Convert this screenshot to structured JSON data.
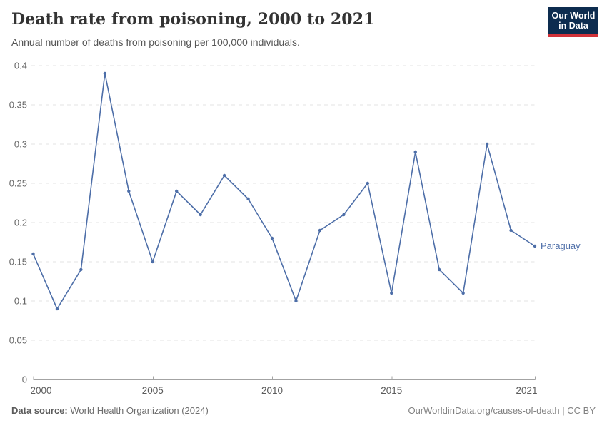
{
  "header": {
    "title": "Death rate from poisoning, 2000 to 2021",
    "subtitle": "Annual number of deaths from poisoning per 100,000 individuals.",
    "logo": {
      "line1": "Our World",
      "line2": "in Data",
      "bg_color": "#0d2c4f",
      "accent_color": "#d13239"
    }
  },
  "chart_data": {
    "type": "line",
    "title": "Death rate from poisoning, 2000 to 2021",
    "subtitle": "Annual number of deaths from poisoning per 100,000 individuals.",
    "xlabel": "",
    "ylabel": "",
    "x": [
      2000,
      2001,
      2002,
      2003,
      2004,
      2005,
      2006,
      2007,
      2008,
      2009,
      2010,
      2011,
      2012,
      2013,
      2014,
      2015,
      2016,
      2017,
      2018,
      2019,
      2020,
      2021
    ],
    "series": [
      {
        "name": "Paraguay",
        "color": "#4d6ea8",
        "values": [
          0.16,
          0.09,
          0.14,
          0.39,
          0.24,
          0.15,
          0.24,
          0.21,
          0.26,
          0.23,
          0.18,
          0.1,
          0.19,
          0.21,
          0.25,
          0.11,
          0.29,
          0.14,
          0.11,
          0.3,
          0.19,
          0.17
        ]
      }
    ],
    "ylim": [
      0,
      0.4
    ],
    "yticks": [
      0,
      0.05,
      0.1,
      0.15,
      0.2,
      0.25,
      0.3,
      0.35,
      0.4
    ],
    "xticks": [
      2000,
      2005,
      2010,
      2015,
      2021
    ],
    "grid": "horizontal-dashed",
    "legend_position": "end-of-line-label",
    "colors": {
      "gridline": "#e3e3e3",
      "axis": "#a3a3a3",
      "y_tick_label": "#666666",
      "x_tick_label": "#5b5b5b"
    }
  },
  "footer": {
    "source_label": "Data source:",
    "source_value": "World Health Organization (2024)",
    "credit": "OurWorldinData.org/causes-of-death | CC BY"
  }
}
